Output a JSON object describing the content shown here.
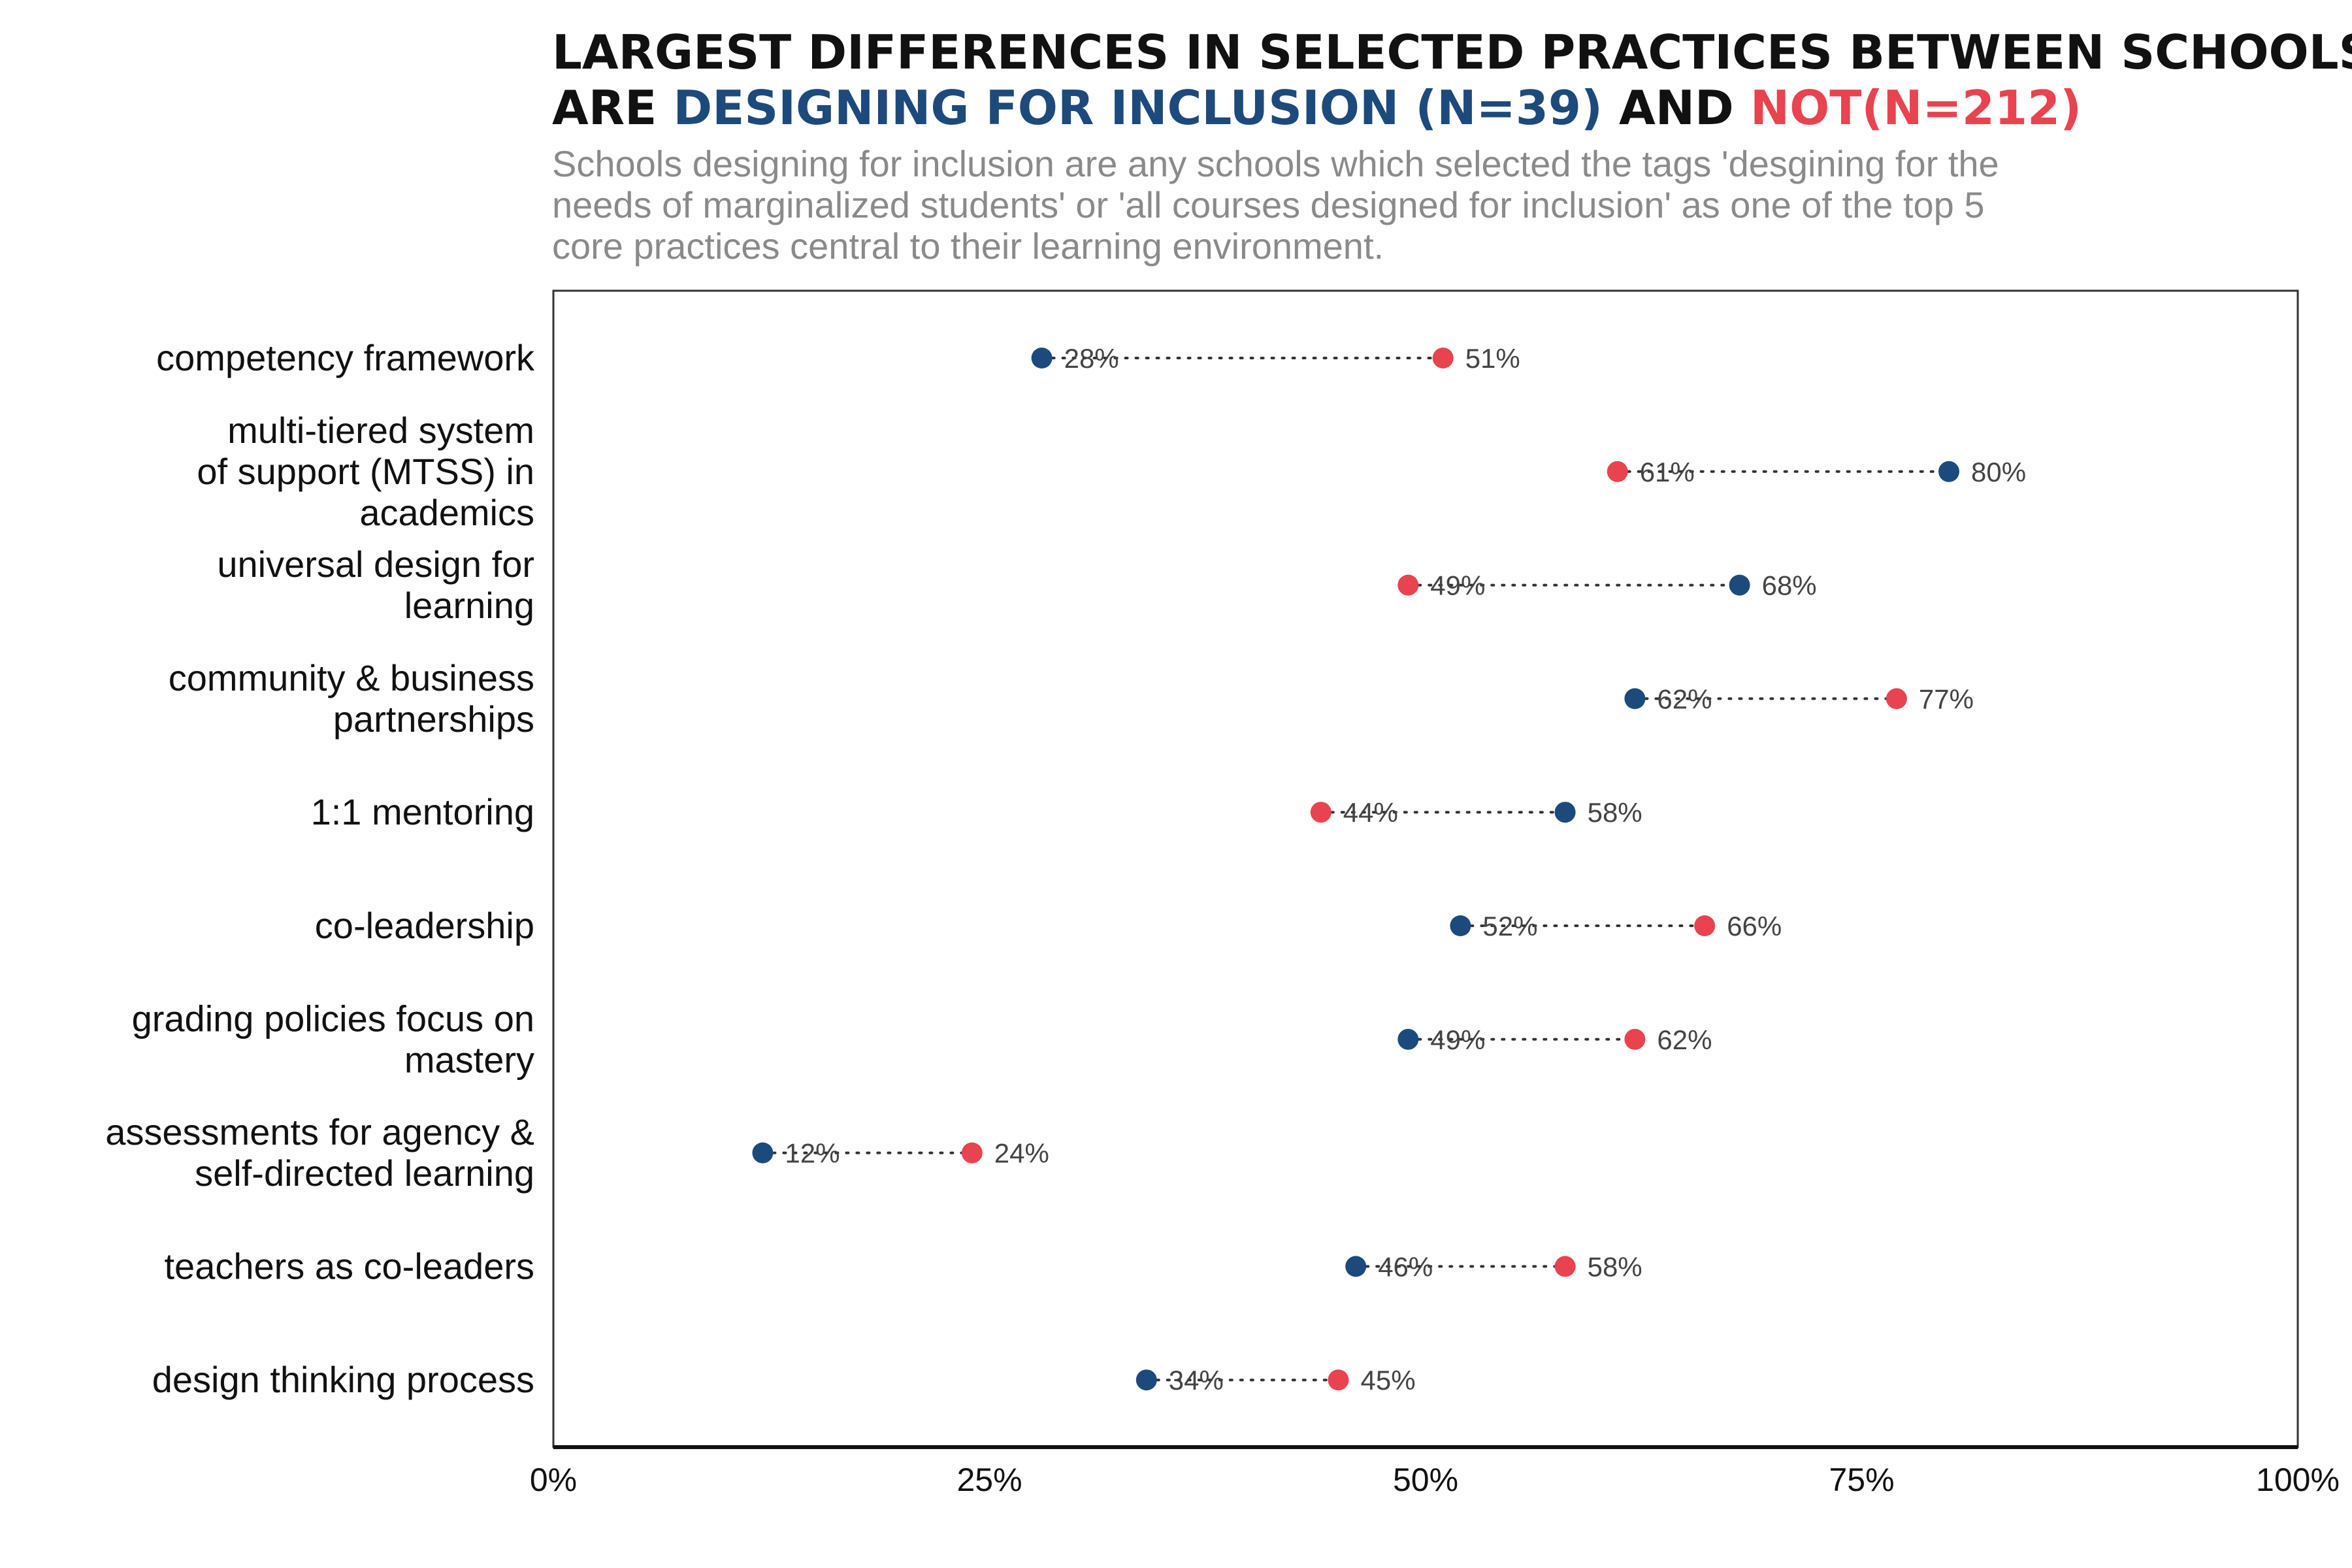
{
  "title_line1": "LARGEST DIFFERENCES IN SELECTED PRACTICES BETWEEN SCHOOLS THAT",
  "title_line2_prefix": "ARE ",
  "title_group_a": "DESIGNING FOR INCLUSION (N=39)",
  "title_and": " AND ",
  "title_group_b": "NOT(N=212)",
  "subtitle": [
    "Schools designing for inclusion are any schools which selected the tags 'desgining for the",
    "needs of marginalized students' or 'all courses designed for inclusion' as one of the top 5",
    "core practices central to their learning environment."
  ],
  "colors": {
    "inclusion": "#1d4a7c",
    "not": "#e8434f",
    "title": "#111111"
  },
  "chart_data": {
    "type": "dumbbell",
    "xlim": [
      0,
      100
    ],
    "x_ticks": [
      "0%",
      "25%",
      "50%",
      "75%",
      "100%"
    ],
    "x_tick_values": [
      0,
      25,
      50,
      75,
      100
    ],
    "categories": [
      {
        "label": [
          "competency framework"
        ],
        "inclusion": 28,
        "not": 51
      },
      {
        "label": [
          "multi-tiered system",
          "of support (MTSS) in",
          "academics"
        ],
        "inclusion": 80,
        "not": 61
      },
      {
        "label": [
          "universal design for",
          "learning"
        ],
        "inclusion": 68,
        "not": 49
      },
      {
        "label": [
          "community & business",
          "partnerships"
        ],
        "inclusion": 62,
        "not": 77
      },
      {
        "label": [
          "1:1 mentoring"
        ],
        "inclusion": 58,
        "not": 44
      },
      {
        "label": [
          "co-leadership"
        ],
        "inclusion": 52,
        "not": 66
      },
      {
        "label": [
          "grading policies focus on",
          "mastery"
        ],
        "inclusion": 49,
        "not": 62
      },
      {
        "label": [
          "assessments for agency &",
          "self-directed learning"
        ],
        "inclusion": 12,
        "not": 24
      },
      {
        "label": [
          "teachers as co-leaders"
        ],
        "inclusion": 46,
        "not": 58
      },
      {
        "label": [
          "design thinking process"
        ],
        "inclusion": 34,
        "not": 45
      }
    ]
  }
}
